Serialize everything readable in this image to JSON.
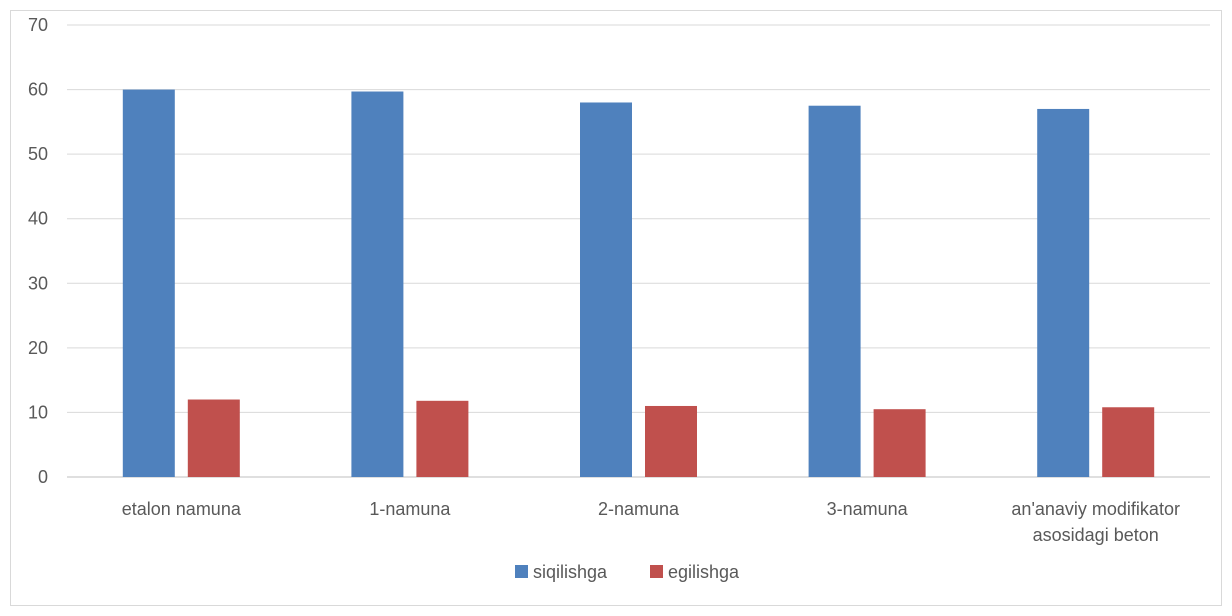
{
  "chart_data": {
    "type": "bar",
    "categories": [
      [
        "etalon namuna"
      ],
      [
        "1-namuna"
      ],
      [
        "2-namuna"
      ],
      [
        "3-namuna"
      ],
      [
        "an'anaviy modifikator",
        "asosidagi beton"
      ]
    ],
    "series": [
      {
        "name": "siqilishga",
        "color": "#4f81bd",
        "values": [
          60,
          59.7,
          58,
          57.5,
          57
        ]
      },
      {
        "name": "egilishga",
        "color": "#c0504d",
        "values": [
          12,
          11.8,
          11,
          10.5,
          10.8
        ]
      }
    ],
    "ylim": [
      0,
      70
    ],
    "yticks": [
      "0",
      "10",
      "20",
      "30",
      "40",
      "50",
      "60",
      "70"
    ],
    "grid": true,
    "legend_position": "bottom",
    "title": "",
    "xlabel": "",
    "ylabel": ""
  }
}
